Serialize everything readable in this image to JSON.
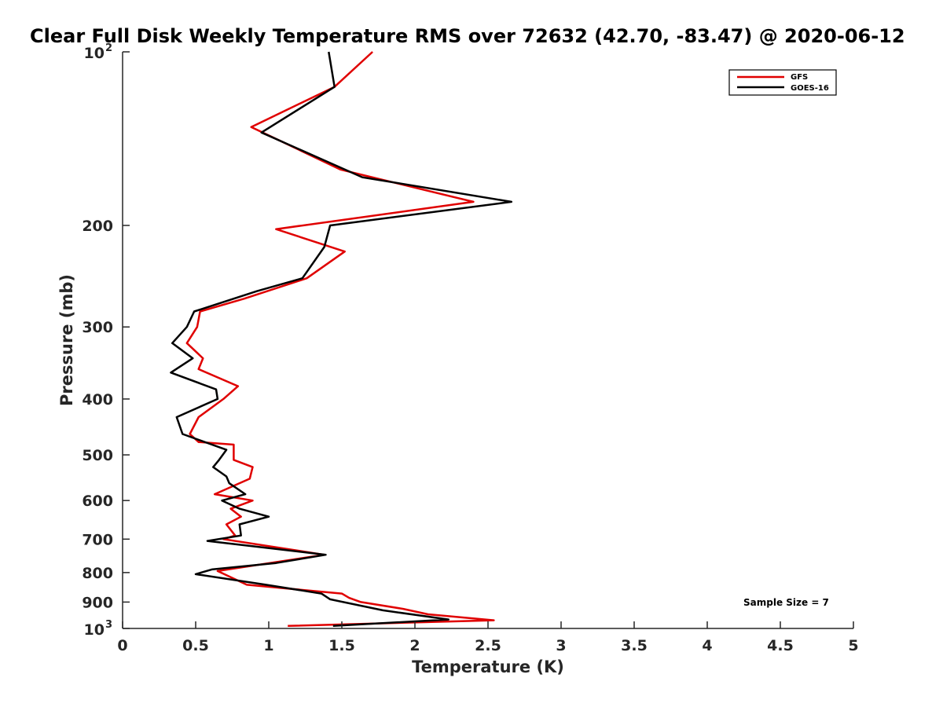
{
  "chart_data": {
    "type": "line",
    "title": "Clear Full Disk Weekly Temperature RMS over 72632 (42.70, -83.47) @ 2020-06-12",
    "xlabel": "Temperature (K)",
    "ylabel": "Pressure (mb)",
    "xlim": [
      0,
      5
    ],
    "ylim": [
      100,
      1000
    ],
    "yscale": "log",
    "y_reversed": true,
    "grid": false,
    "legend_position": "top-right",
    "x_ticks": [
      "0",
      "0.5",
      "1",
      "1.5",
      "2",
      "2.5",
      "3",
      "3.5",
      "4",
      "4.5",
      "5"
    ],
    "y_ticks": [
      {
        "value": 100,
        "base": "10",
        "exp": "2",
        "label": ""
      },
      {
        "value": 200,
        "base": "",
        "exp": "",
        "label": "200"
      },
      {
        "value": 300,
        "base": "",
        "exp": "",
        "label": "300"
      },
      {
        "value": 400,
        "base": "",
        "exp": "",
        "label": "400"
      },
      {
        "value": 500,
        "base": "",
        "exp": "",
        "label": "500"
      },
      {
        "value": 600,
        "base": "",
        "exp": "",
        "label": "600"
      },
      {
        "value": 700,
        "base": "",
        "exp": "",
        "label": "700"
      },
      {
        "value": 800,
        "base": "",
        "exp": "",
        "label": "800"
      },
      {
        "value": 900,
        "base": "",
        "exp": "",
        "label": "900"
      },
      {
        "value": 1000,
        "base": "10",
        "exp": "3",
        "label": ""
      }
    ],
    "series": [
      {
        "name": "GFS",
        "color": "#e00000",
        "x": [
          1.71,
          1.45,
          0.88,
          1.49,
          2.4,
          1.05,
          1.52,
          1.26,
          0.83,
          0.53,
          0.51,
          0.44,
          0.55,
          0.52,
          0.79,
          0.69,
          0.52,
          0.46,
          0.52,
          0.76,
          0.76,
          0.89,
          0.87,
          0.63,
          0.89,
          0.74,
          0.81,
          0.71,
          0.77,
          0.69,
          1.38,
          0.65,
          0.85,
          1.5,
          1.55,
          1.63,
          1.92,
          2.09,
          2.54,
          1.13
        ],
        "y": [
          100,
          115,
          135,
          160,
          182,
          203,
          222,
          247,
          268,
          282,
          300,
          320,
          340,
          355,
          380,
          400,
          430,
          460,
          475,
          480,
          510,
          525,
          550,
          585,
          600,
          620,
          640,
          660,
          690,
          700,
          745,
          795,
          840,
          870,
          885,
          900,
          925,
          945,
          968,
          990
        ]
      },
      {
        "name": "GOES-16",
        "color": "#000000",
        "x": [
          1.41,
          1.45,
          0.95,
          1.64,
          2.66,
          1.42,
          1.38,
          1.23,
          0.92,
          0.49,
          0.44,
          0.34,
          0.48,
          0.33,
          0.64,
          0.65,
          0.37,
          0.41,
          0.71,
          0.66,
          0.62,
          0.71,
          0.73,
          0.84,
          0.68,
          0.8,
          1.0,
          0.8,
          0.81,
          0.58,
          1.39,
          1.05,
          0.61,
          0.5,
          0.98,
          1.36,
          1.42,
          1.78,
          2.23,
          1.44
        ],
        "y": [
          100,
          115,
          138,
          165,
          182,
          200,
          218,
          247,
          260,
          282,
          300,
          320,
          340,
          360,
          385,
          400,
          430,
          460,
          490,
          510,
          525,
          545,
          560,
          585,
          600,
          620,
          640,
          660,
          690,
          705,
          745,
          770,
          790,
          805,
          840,
          870,
          890,
          930,
          965,
          990
        ]
      }
    ],
    "annotation": "Sample Size = 7"
  }
}
